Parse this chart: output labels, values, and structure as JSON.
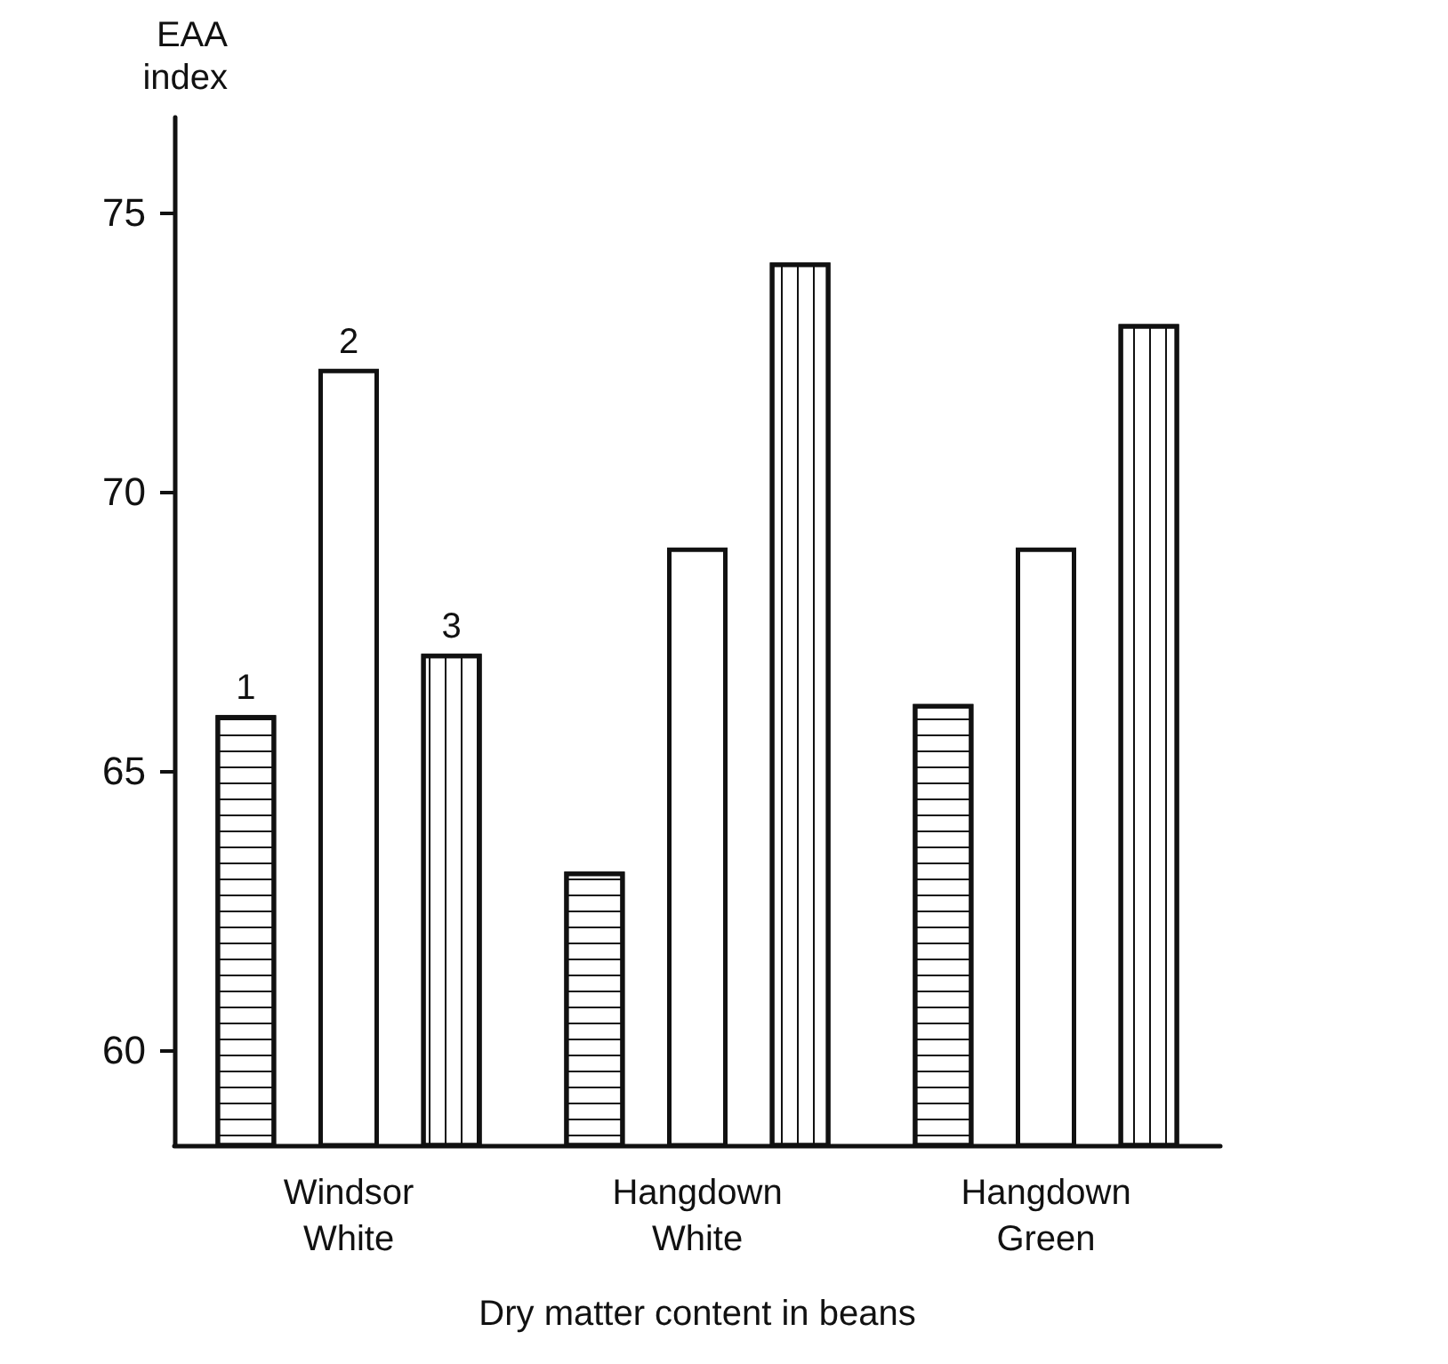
{
  "chart_data": {
    "type": "bar",
    "xlabel": "Dry matter content in beans",
    "ylabel": "EAA index",
    "categories": [
      "Windsor White",
      "Hangdown White",
      "Hangdown Green"
    ],
    "series": [
      {
        "name": "1",
        "color": "#ffffff",
        "values": [
          66.0,
          63.2,
          66.2
        ]
      },
      {
        "name": "2",
        "color": "#ffffff",
        "values": [
          72.2,
          69.0,
          69.0
        ]
      },
      {
        "name": "3",
        "color": "#ffffff",
        "values": [
          67.1,
          74.1,
          73.0
        ]
      }
    ],
    "ylim": [
      58.3,
      76.7
    ],
    "yticks": [
      60,
      65,
      70,
      75
    ],
    "grid": false,
    "legend": false
  }
}
